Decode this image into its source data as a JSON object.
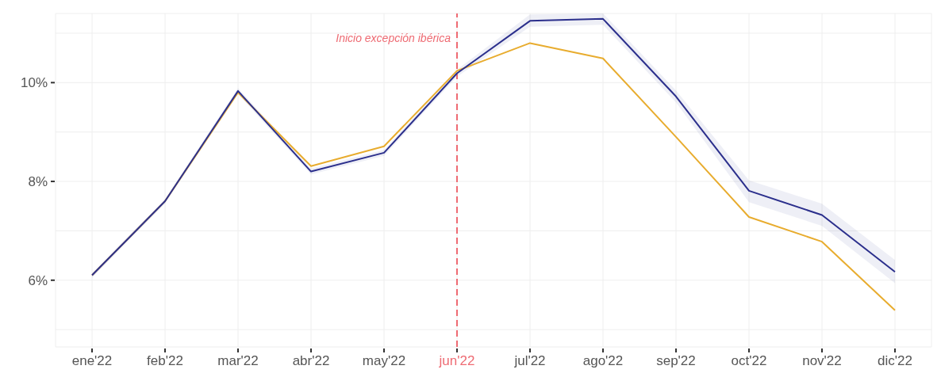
{
  "chart_data": {
    "type": "line",
    "categories": [
      "ene'22",
      "feb'22",
      "mar'22",
      "abr'22",
      "may'22",
      "jun'22",
      "jul'22",
      "ago'22",
      "sep'22",
      "oct'22",
      "nov'22",
      "dic'22"
    ],
    "series": [
      {
        "color": "#e8ac2e",
        "values": [
          6.1,
          7.6,
          9.8,
          8.31,
          8.71,
          10.24,
          10.8,
          10.49,
          8.9,
          7.28,
          6.78,
          5.39
        ]
      },
      {
        "color": "#2b2f8c",
        "values": [
          6.1,
          7.6,
          9.83,
          8.2,
          8.58,
          10.19,
          11.25,
          11.29,
          9.72,
          7.81,
          7.32,
          6.17
        ],
        "lower": [
          6.05,
          7.55,
          9.77,
          8.14,
          8.52,
          10.12,
          11.13,
          11.17,
          9.6,
          7.58,
          7.1,
          5.94
        ],
        "upper": [
          6.15,
          7.65,
          9.89,
          8.26,
          8.64,
          10.26,
          11.38,
          11.4,
          9.84,
          8.02,
          7.55,
          6.41
        ]
      }
    ],
    "ylim": [
      4.65,
      11.4
    ],
    "yticks": [
      {
        "value": 5,
        "label": null
      },
      {
        "value": 6,
        "label": "6%"
      },
      {
        "value": 7,
        "label": null
      },
      {
        "value": 8,
        "label": "8%"
      },
      {
        "value": 9,
        "label": null
      },
      {
        "value": 10,
        "label": "10%"
      },
      {
        "value": 11,
        "label": null
      }
    ],
    "grid": true,
    "line_style": "solid",
    "ref_lines": [
      {
        "axis": "x",
        "value": "jun'22",
        "label": "Inicio excepción ibérica",
        "color": "#ee6b73",
        "line_style": "dashed"
      }
    ]
  }
}
